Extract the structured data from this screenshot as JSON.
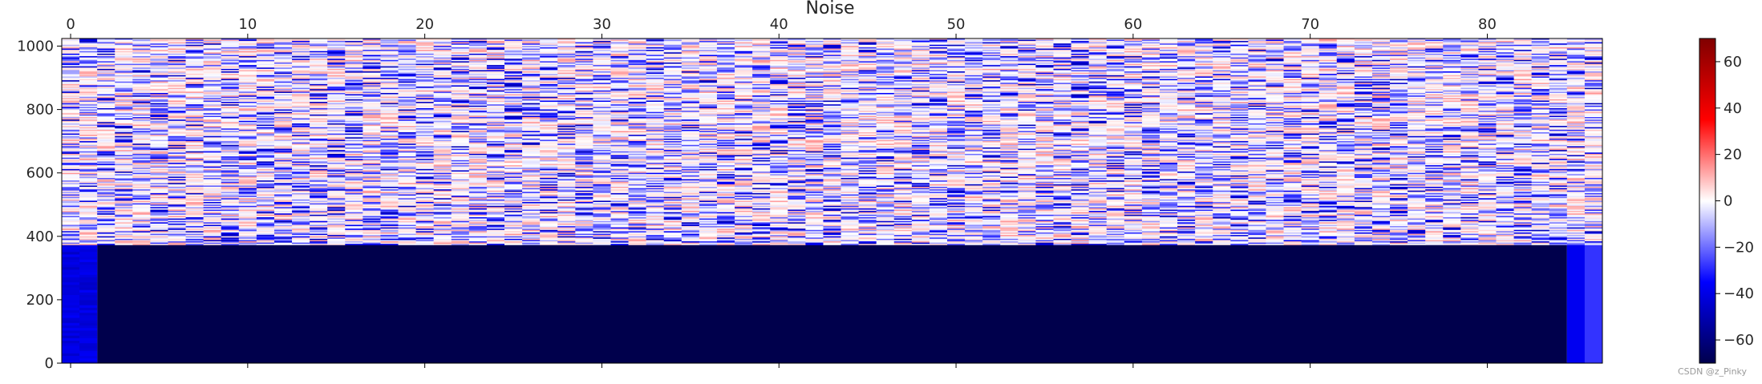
{
  "chart_data": {
    "type": "heatmap",
    "title": "Noise",
    "xlabel": "",
    "ylabel": "",
    "xlim": [
      -0.5,
      86.5
    ],
    "ylim": [
      0,
      1024
    ],
    "x_ticks": [
      0,
      10,
      20,
      30,
      40,
      50,
      60,
      70,
      80
    ],
    "x_tick_labels": [
      "0",
      "10",
      "20",
      "30",
      "40",
      "50",
      "60",
      "70",
      "80"
    ],
    "x_axis_position": "top",
    "y_ticks": [
      0,
      200,
      400,
      600,
      800,
      1000
    ],
    "y_tick_labels": [
      "0",
      "200",
      "400",
      "600",
      "800",
      "1000"
    ],
    "colormap": "seismic",
    "colormap_colors": [
      "#00004c",
      "#0000ff",
      "#ffffff",
      "#ff0000",
      "#800000"
    ],
    "vmin": -70,
    "vmax": 70,
    "colorbar_ticks": [
      60,
      40,
      20,
      0,
      -20,
      -40,
      -60
    ],
    "colorbar_tick_labels": [
      "60",
      "40",
      "20",
      "0",
      "−20",
      "−40",
      "−60"
    ],
    "n_columns": 87,
    "regions": [
      {
        "name": "noise",
        "x_range": [
          0,
          86
        ],
        "y_range": [
          373,
          1024
        ],
        "approx_value_range": [
          -40,
          15
        ]
      },
      {
        "name": "floor",
        "x_range": [
          2,
          84
        ],
        "y_range": [
          0,
          373
        ],
        "approx_value": -70
      },
      {
        "name": "left-edge",
        "x_range": [
          0,
          1
        ],
        "y_range": [
          0,
          373
        ],
        "approx_value": -40
      },
      {
        "name": "right-edge",
        "x_range": [
          85,
          86
        ],
        "y_range": [
          0,
          373
        ],
        "approx_value": -30
      }
    ]
  },
  "watermark": "CSDN @z_Pinky"
}
